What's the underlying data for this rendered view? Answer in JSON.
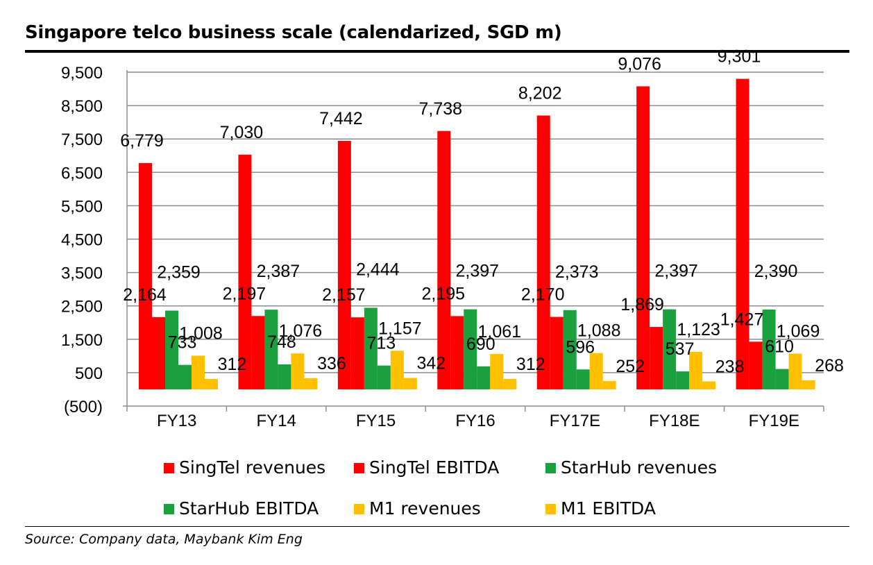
{
  "chart_data": {
    "type": "bar",
    "title": "Singapore telco business scale (calendarized, SGD m)",
    "source": "Source: Company data, Maybank Kim Eng",
    "categories": [
      "FY13",
      "FY14",
      "FY15",
      "FY16",
      "FY17E",
      "FY18E",
      "FY19E"
    ],
    "y_ticks": [
      500,
      1500,
      2500,
      3500,
      4500,
      5500,
      6500,
      7500,
      8500,
      9500
    ],
    "y_tick_labels": [
      "500",
      "1,500",
      "2,500",
      "3,500",
      "4,500",
      "5,500",
      "6,500",
      "7,500",
      "8,500",
      "9,500"
    ],
    "y_bottom_label": "(500)",
    "ylim": [
      -500,
      9500
    ],
    "grid": true,
    "legend_position": "bottom",
    "series": [
      {
        "name": "SingTel revenues",
        "color": "#ff0000",
        "values": [
          6779,
          7030,
          7442,
          7738,
          8202,
          9076,
          9301
        ],
        "labels": [
          "6,779",
          "7,030",
          "7,442",
          "7,738",
          "8,202",
          "9,076",
          "9,301"
        ]
      },
      {
        "name": "SingTel EBITDA",
        "color": "#ff0000",
        "values": [
          2164,
          2197,
          2157,
          2195,
          2170,
          1869,
          1427
        ],
        "labels": [
          "2,164",
          "2,197",
          "2,157",
          "2,195",
          "2,170",
          "1,869",
          "1,427"
        ]
      },
      {
        "name": "StarHub revenues",
        "color": "#1ba03e",
        "values": [
          2359,
          2387,
          2444,
          2397,
          2373,
          2397,
          2390
        ],
        "labels": [
          "2,359",
          "2,387",
          "2,444",
          "2,397",
          "2,373",
          "2,397",
          "2,390"
        ]
      },
      {
        "name": "StarHub EBITDA",
        "color": "#1ba03e",
        "values": [
          733,
          748,
          713,
          690,
          596,
          537,
          610
        ],
        "labels": [
          "733",
          "748",
          "713",
          "690",
          "596",
          "537",
          "610"
        ]
      },
      {
        "name": "M1 revenues",
        "color": "#ffc000",
        "values": [
          1008,
          1076,
          1157,
          1061,
          1088,
          1123,
          1069
        ],
        "labels": [
          "1,008",
          "1,076",
          "1,157",
          "1,061",
          "1,088",
          "1,123",
          "1,069"
        ]
      },
      {
        "name": "M1 EBITDA",
        "color": "#ffc000",
        "values": [
          312,
          336,
          342,
          312,
          252,
          238,
          268
        ],
        "labels": [
          "312",
          "336",
          "342",
          "312",
          "252",
          "238",
          "268"
        ]
      }
    ]
  }
}
